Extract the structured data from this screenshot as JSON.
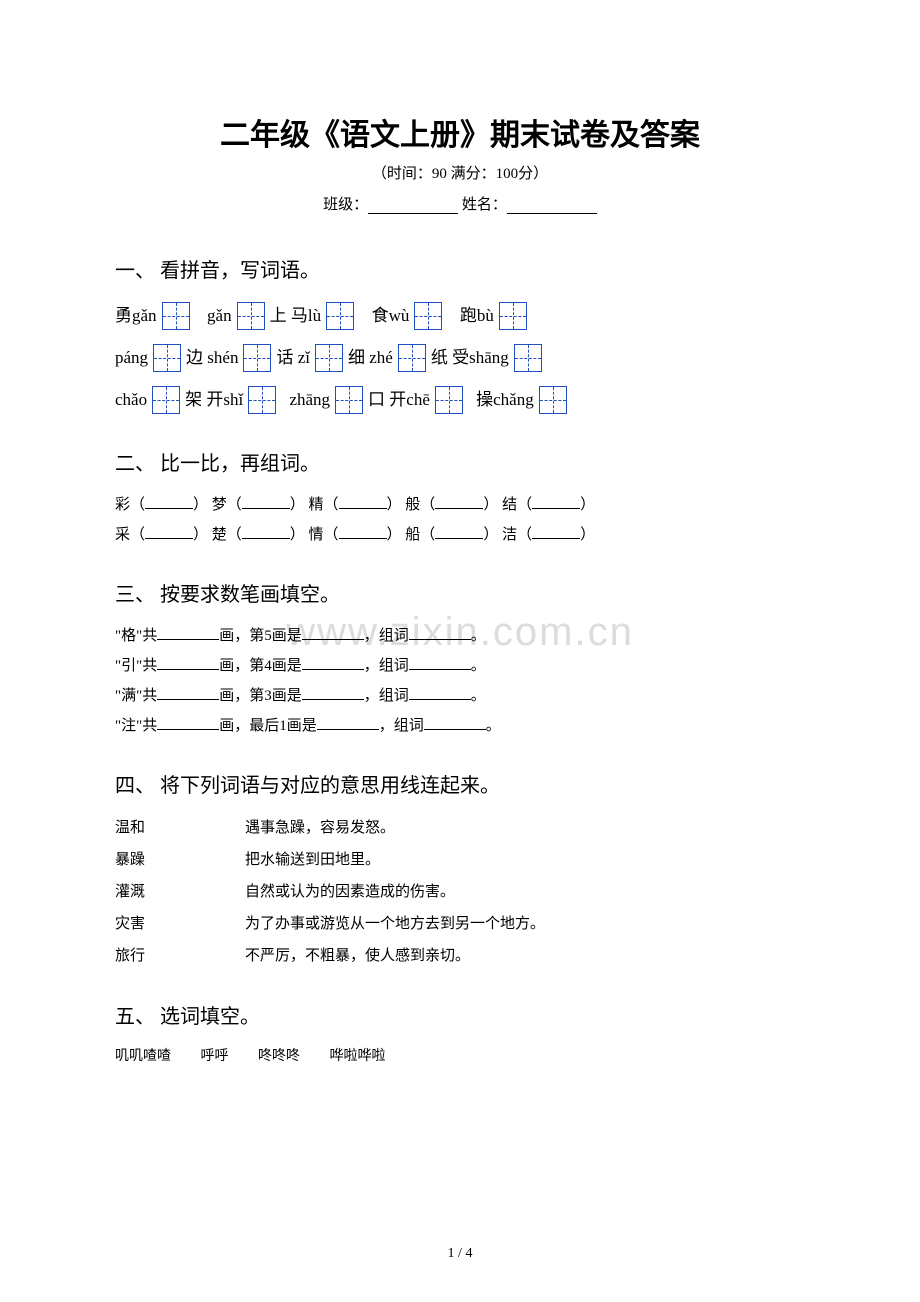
{
  "title": "二年级《语文上册》期末试卷及答案",
  "subtitle": "（时间：90   满分：100分）",
  "form": {
    "class_label": "班级：",
    "name_label": " 姓名："
  },
  "watermark": "www.zixin.com.cn",
  "page_num": "1 / 4",
  "s1": {
    "heading": "一、 看拼音，写词语。",
    "r1": [
      "勇gǎn",
      "gǎn",
      "上   马lù",
      "食wù",
      "跑bù"
    ],
    "r2": [
      "páng",
      "边   shén",
      "话  zǐ",
      "细  zhé",
      "纸 受shāng"
    ],
    "r3": [
      "chǎo",
      "架 开shǐ",
      "zhāng",
      "口 开chē",
      "操chǎng"
    ]
  },
  "s2": {
    "heading": "二、 比一比，再组词。",
    "row1": [
      "彩（",
      "）   梦（",
      "）   精（",
      "）    般（",
      "）   结（",
      "）"
    ],
    "row2": [
      "采（",
      "）   楚（",
      "）   情（",
      "）    船（",
      "）   洁（",
      "）"
    ]
  },
  "s3": {
    "heading": "三、 按要求数笔画填空。",
    "lines": [
      {
        "a": "\"格\"共",
        "b": "画，第5画是",
        "c": "，组词",
        "d": "。"
      },
      {
        "a": "\"引\"共",
        "b": "画，第4画是",
        "c": "，组词",
        "d": "。"
      },
      {
        "a": "\"满\"共",
        "b": "画，第3画是",
        "c": "，组词",
        "d": "。"
      },
      {
        "a": "\"注\"共",
        "b": "画，最后1画是",
        "c": "，组词",
        "d": "。"
      }
    ]
  },
  "s4": {
    "heading": "四、 将下列词语与对应的意思用线连起来。",
    "pairs": [
      {
        "l": "温和",
        "r": "遇事急躁，容易发怒。"
      },
      {
        "l": "暴躁",
        "r": "把水输送到田地里。"
      },
      {
        "l": "灌溉",
        "r": "自然或认为的因素造成的伤害。"
      },
      {
        "l": "灾害",
        "r": "为了办事或游览从一个地方去到另一个地方。"
      },
      {
        "l": "旅行",
        "r": "不严厉，不粗暴，使人感到亲切。"
      }
    ]
  },
  "s5": {
    "heading": "五、 选词填空。",
    "words": [
      "叽叽喳喳",
      "呼呼",
      "咚咚咚",
      "哗啦哗啦"
    ]
  }
}
